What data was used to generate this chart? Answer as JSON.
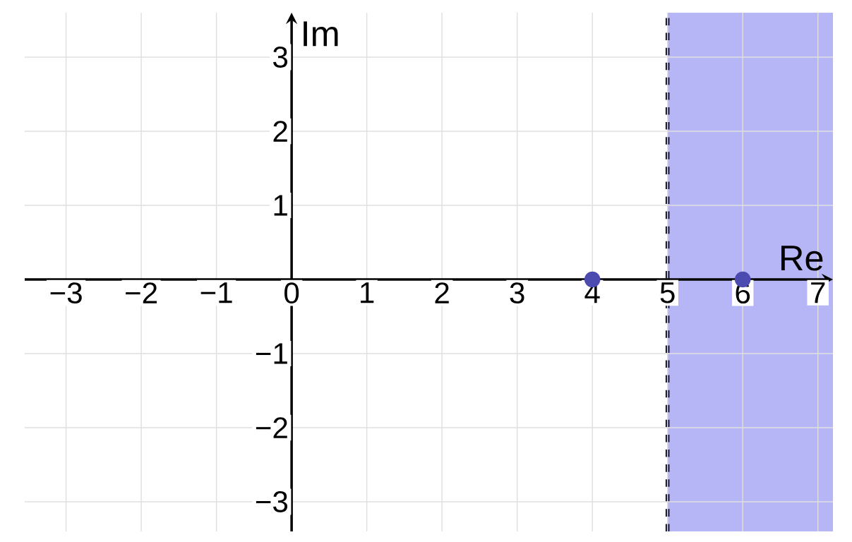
{
  "chart_data": {
    "type": "scatter",
    "xlabel": "Re",
    "ylabel": "Im",
    "x": [
      4,
      6
    ],
    "values": [
      0,
      0
    ],
    "color": "#4b4bb0",
    "xlim": [
      -3.55,
      7.2
    ],
    "ylim": [
      -3.4,
      3.6
    ],
    "xticks": [
      {
        "value": -3,
        "label": "−3"
      },
      {
        "value": -2,
        "label": "−2"
      },
      {
        "value": -1,
        "label": "−1"
      },
      0,
      1,
      2,
      3,
      4,
      5,
      6,
      7
    ],
    "yticks": [
      {
        "value": -3,
        "label": "−3"
      },
      {
        "value": -2,
        "label": "−2"
      },
      {
        "value": -1,
        "label": "−1"
      },
      1,
      2,
      3
    ],
    "bands": [
      {
        "axis": "x",
        "from": 5,
        "to": 7.2,
        "color": "#b6b6f6"
      }
    ],
    "ref_lines": [
      {
        "axis": "x",
        "value": 5,
        "color": "#1a1a3a",
        "line_style": "dashed"
      }
    ],
    "grid": true
  }
}
